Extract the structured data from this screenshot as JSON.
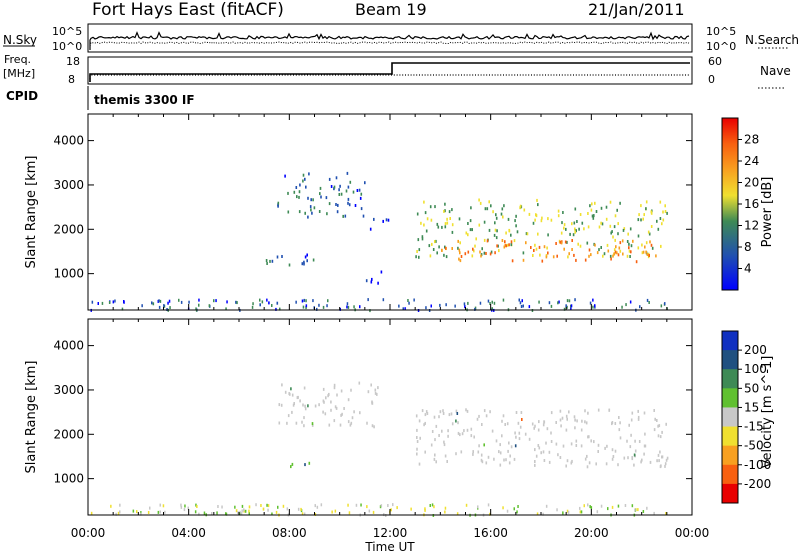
{
  "header": {
    "station": "Fort Hays East (fitACF)",
    "beam": "Beam 19",
    "date": "21/Jan/2011"
  },
  "params": {
    "nsky_label": "N.Sky",
    "nsearch_label": "N.Search",
    "freq_label": "Freq.",
    "freq_unit": "[MHz]",
    "nave_label": "Nave",
    "cpid_label": "CPID",
    "cpid_value": "themis 3300 IF",
    "noise_ticks": [
      "10^5",
      "10^0"
    ],
    "freq_ticks": [
      "18",
      "8"
    ],
    "nave_ticks": [
      "60",
      "0"
    ]
  },
  "chart_data": [
    {
      "type": "heatmap",
      "title": "",
      "xlabel": "Time UT",
      "ylabel": "Slant Range [km]",
      "x_ticks": [
        "00:00",
        "04:00",
        "08:00",
        "12:00",
        "16:00",
        "20:00",
        "00:00"
      ],
      "y_ticks": [
        "1000",
        "2000",
        "3000",
        "4000"
      ],
      "xlim": [
        0,
        24
      ],
      "ylim": [
        180,
        4600
      ],
      "colorbar": {
        "label": "Power [dB]",
        "ticks": [
          "4",
          "8",
          "12",
          "16",
          "20",
          "24",
          "28"
        ],
        "colors": [
          "#0000ff",
          "#2050b0",
          "#3e8a55",
          "#f0e030",
          "#f8a020",
          "#f86010",
          "#e80000"
        ]
      },
      "echo_regions": [
        {
          "t": [
            5.5,
            7.5
          ],
          "range": [
            300,
            400
          ],
          "value": 6
        },
        {
          "t": [
            6.5,
            9.0
          ],
          "range": [
            1200,
            1500
          ],
          "value": 9
        },
        {
          "t": [
            7.5,
            11.0
          ],
          "range": [
            2300,
            3300
          ],
          "value": 9
        },
        {
          "t": [
            11.0,
            12.0
          ],
          "range": [
            2000,
            2300
          ],
          "value": 6
        },
        {
          "t": [
            11.0,
            12.0
          ],
          "range": [
            800,
            1100
          ],
          "value": 6
        },
        {
          "t": [
            13.0,
            23.0
          ],
          "range": [
            1400,
            2700
          ],
          "value": 14
        },
        {
          "t": [
            14.0,
            22.8
          ],
          "range": [
            1300,
            1800
          ],
          "value": 22
        }
      ]
    },
    {
      "type": "heatmap",
      "title": "",
      "xlabel": "Time UT",
      "ylabel": "Slant Range [km]",
      "x_ticks": [
        "00:00",
        "04:00",
        "08:00",
        "12:00",
        "16:00",
        "20:00",
        "00:00"
      ],
      "y_ticks": [
        "1000",
        "2000",
        "3000",
        "4000"
      ],
      "xlim": [
        0,
        24
      ],
      "ylim": [
        180,
        4600
      ],
      "colorbar": {
        "label": "Velocity [m s^-1]",
        "ticks": [
          "200",
          "100",
          "50",
          "15",
          "-15",
          "-50",
          "-100",
          "-200"
        ],
        "colors": [
          "#1030c0",
          "#205080",
          "#3e8a55",
          "#60c030",
          "#c8c8c8",
          "#f0e030",
          "#f8a020",
          "#f86010",
          "#e80000"
        ]
      },
      "echo_regions": [
        {
          "t": [
            5.5,
            7.5
          ],
          "range": [
            300,
            400
          ],
          "value": -30
        },
        {
          "t": [
            7.5,
            9.0
          ],
          "range": [
            1300,
            1450
          ],
          "value": 30
        },
        {
          "t": [
            7.5,
            11.5
          ],
          "range": [
            2200,
            3200
          ],
          "value": 0
        },
        {
          "t": [
            13.0,
            23.0
          ],
          "range": [
            1300,
            2600
          ],
          "value": 0
        }
      ]
    }
  ]
}
